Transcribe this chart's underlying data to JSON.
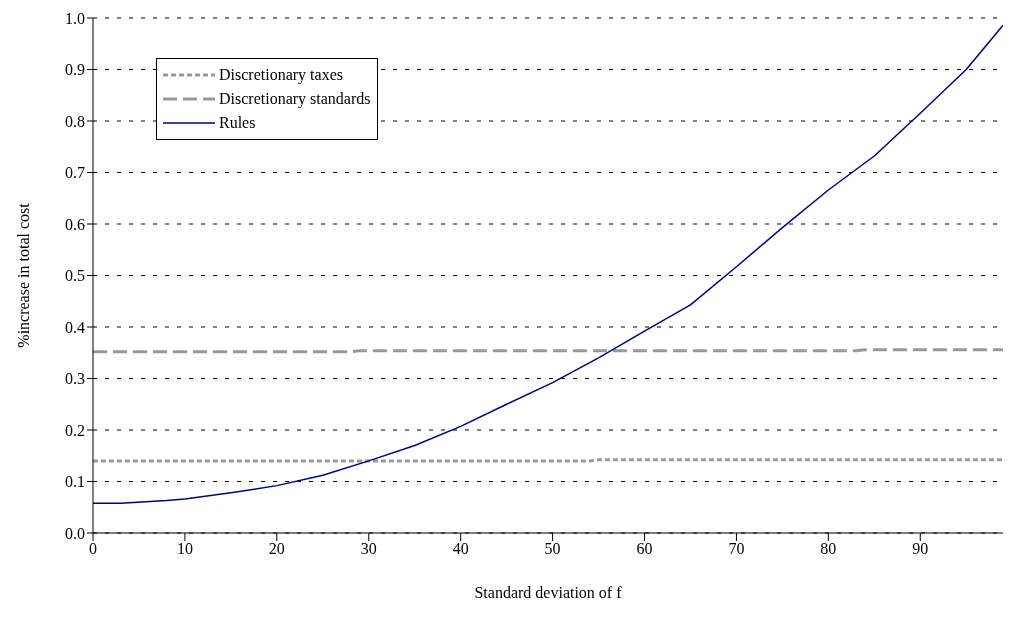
{
  "chart_data": {
    "type": "line",
    "xlabel": "Standard deviation of f",
    "ylabel": "%increase in total cost",
    "xlim": [
      0,
      99
    ],
    "ylim": [
      0,
      1
    ],
    "xticks": [
      0,
      10,
      20,
      30,
      40,
      50,
      60,
      70,
      80,
      90
    ],
    "yticks": [
      {
        "value": 0,
        "label": "0.0"
      },
      {
        "value": 0.1,
        "label": "0.1"
      },
      {
        "value": 0.2,
        "label": "0.2"
      },
      {
        "value": 0.3,
        "label": "0.3"
      },
      {
        "value": 0.4,
        "label": "0.4"
      },
      {
        "value": 0.5,
        "label": "0.5"
      },
      {
        "value": 0.6,
        "label": "0.6"
      },
      {
        "value": 0.7,
        "label": "0.7"
      },
      {
        "value": 0.8,
        "label": "0.8"
      },
      {
        "value": 0.9,
        "label": "0.9"
      },
      {
        "value": 1,
        "label": "1.0"
      }
    ],
    "grid": "y",
    "legend": "top left",
    "marker": "none",
    "series": [
      {
        "name": "Discretionary taxes",
        "color": "#999999",
        "line_style": "dotted",
        "x": [
          0,
          54,
          55,
          99
        ],
        "values": [
          0.14,
          0.14,
          0.142,
          0.142
        ]
      },
      {
        "name": "Discretionary standards",
        "color": "#999999",
        "line_style": "dashed",
        "x": [
          0,
          28,
          29,
          83,
          84,
          99
        ],
        "values": [
          0.352,
          0.352,
          0.354,
          0.354,
          0.356,
          0.356
        ]
      },
      {
        "name": "Rules",
        "color": "#000080",
        "line_style": "solid",
        "x": [
          0,
          3,
          8,
          10,
          15,
          20,
          25,
          30,
          35,
          40,
          45,
          50,
          55,
          60,
          65,
          70,
          75,
          80,
          85,
          90,
          95,
          99
        ],
        "values": [
          0.058,
          0.058,
          0.063,
          0.066,
          0.078,
          0.092,
          0.112,
          0.14,
          0.17,
          0.207,
          0.25,
          0.292,
          0.34,
          0.392,
          0.443,
          0.517,
          0.593,
          0.666,
          0.732,
          0.815,
          0.9,
          0.986
        ]
      }
    ]
  }
}
